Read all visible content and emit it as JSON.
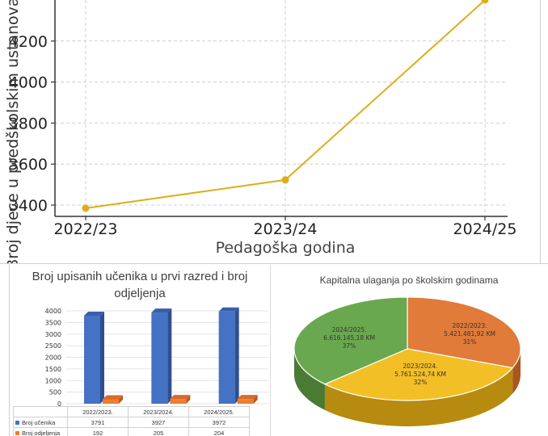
{
  "chart_data": [
    {
      "type": "line",
      "xlabel": "Pedagoška godina",
      "ylabel": "Broj djece u predškolskim ustanovama",
      "x": [
        "2022/23",
        "2023/24",
        "2024/25"
      ],
      "series": [
        {
          "values": [
            3385,
            3523,
            4400
          ]
        }
      ],
      "y_ticks": [
        3400,
        3600,
        3800,
        4000,
        4200
      ],
      "ylim": [
        3345,
        4400
      ],
      "grid": true,
      "color": "#dcae1d"
    },
    {
      "type": "bar",
      "title": "Broj upisanih učenika u prvi razred i broj odjeljenja",
      "categories": [
        "2022/2023.",
        "2023/2024.",
        "2024/2025."
      ],
      "series": [
        {
          "name": "Broj učenika",
          "values": [
            3791,
            3927,
            3972
          ],
          "color": "#4472c4"
        },
        {
          "name": "Broj odjeljenja",
          "values": [
            192,
            205,
            204
          ],
          "color": "#ed7d31"
        }
      ],
      "y_ticks": [
        0,
        500,
        1000,
        1500,
        2000,
        2500,
        3000,
        3500,
        4000
      ],
      "ylim": [
        0,
        4000
      ],
      "grid": true,
      "legend": "data-table-below"
    },
    {
      "type": "pie",
      "title": "Kapitalna ulaganja po školskim godinama",
      "slices": [
        {
          "label": "2022/2023.",
          "amount": "5.421.481,92 KM",
          "value": 31,
          "percent": "31%",
          "color": "#e07b39"
        },
        {
          "label": "2023/2024.",
          "amount": "5.761.524,74 KM",
          "value": 32,
          "percent": "32%",
          "color": "#f2bf26"
        },
        {
          "label": "2024/2025.",
          "amount": "6.616.145,18 KM",
          "value": 37,
          "percent": "37%",
          "color": "#6aa84f"
        }
      ]
    }
  ]
}
